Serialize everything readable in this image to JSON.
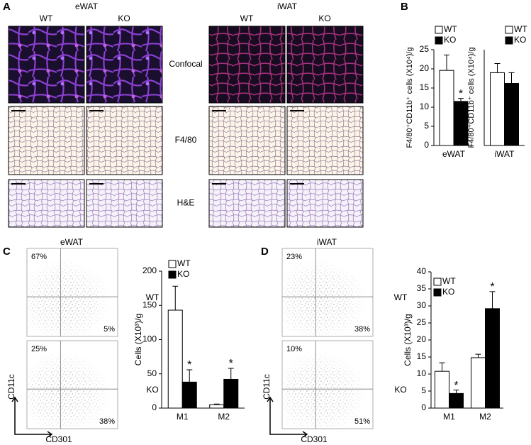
{
  "panels": {
    "A": {
      "letter": "A",
      "groups": [
        {
          "name": "eWAT",
          "columns": [
            "WT",
            "KO"
          ]
        },
        {
          "name": "iWAT",
          "columns": [
            "WT",
            "KO"
          ]
        }
      ],
      "row_labels": [
        "Confocal",
        "F4/80",
        "H&E"
      ]
    },
    "B": {
      "letter": "B"
    },
    "C": {
      "letter": "C",
      "title": "eWAT",
      "rows": [
        {
          "label": "WT",
          "top": "67%",
          "bottom": "5%"
        },
        {
          "label": "KO",
          "top": "25%",
          "bottom": "38%"
        }
      ],
      "ylabel": "CD11c",
      "xlabel": "CD301"
    },
    "D": {
      "letter": "D",
      "title": "iWAT",
      "rows": [
        {
          "label": "WT",
          "top": "23%",
          "bottom": "38%"
        },
        {
          "label": "KO",
          "top": "10%",
          "bottom": "51%"
        }
      ],
      "ylabel": "CD11c",
      "xlabel": "CD301"
    }
  },
  "chart_data": [
    {
      "type": "bar",
      "ylabel": "F4/80⁺CD11b⁺ cells (X10⁴)/g",
      "categories": [
        "eWAT"
      ],
      "series": [
        {
          "name": "WT",
          "color": "#ffffff",
          "values": [
            19.6
          ],
          "errors": [
            4
          ]
        },
        {
          "name": "KO",
          "color": "#000000",
          "values": [
            11.5
          ],
          "errors": [
            0.8
          ],
          "significance": [
            "*"
          ]
        }
      ],
      "ylim": [
        0,
        25
      ],
      "yticks": [
        0,
        5,
        10,
        15,
        20,
        25
      ]
    },
    {
      "type": "bar",
      "ylabel": "F4/80⁺CD11b⁺ cells (X10⁴)/g",
      "categories": [
        "iWAT"
      ],
      "series": [
        {
          "name": "WT",
          "color": "#ffffff",
          "values": [
            19
          ],
          "errors": [
            2.4
          ]
        },
        {
          "name": "KO",
          "color": "#000000",
          "values": [
            16.2
          ],
          "errors": [
            2.8
          ]
        }
      ],
      "ylim": [
        0,
        25
      ]
    },
    {
      "type": "bar",
      "ylabel": "Cells (X10³)/g",
      "categories": [
        "M1",
        "M2"
      ],
      "series": [
        {
          "name": "WT",
          "color": "#ffffff",
          "values": [
            143,
            5
          ],
          "errors": [
            35,
            1
          ]
        },
        {
          "name": "KO",
          "color": "#000000",
          "values": [
            38,
            42
          ],
          "errors": [
            18,
            16
          ],
          "significance": [
            "*",
            "*"
          ]
        }
      ],
      "ylim": [
        0,
        200
      ],
      "yticks": [
        0,
        50,
        100,
        150,
        200
      ]
    },
    {
      "type": "bar",
      "ylabel": "Cells (X10³)/g",
      "categories": [
        "M1",
        "M2"
      ],
      "series": [
        {
          "name": "WT",
          "color": "#ffffff",
          "values": [
            10.8,
            14.8
          ],
          "errors": [
            2.5,
            1
          ]
        },
        {
          "name": "KO",
          "color": "#000000",
          "values": [
            4.3,
            29.2
          ],
          "errors": [
            1,
            5
          ],
          "significance": [
            "*",
            "*"
          ]
        }
      ],
      "ylim": [
        0,
        40
      ],
      "yticks": [
        0,
        5,
        10,
        15,
        20,
        25,
        30,
        35,
        40
      ]
    }
  ]
}
